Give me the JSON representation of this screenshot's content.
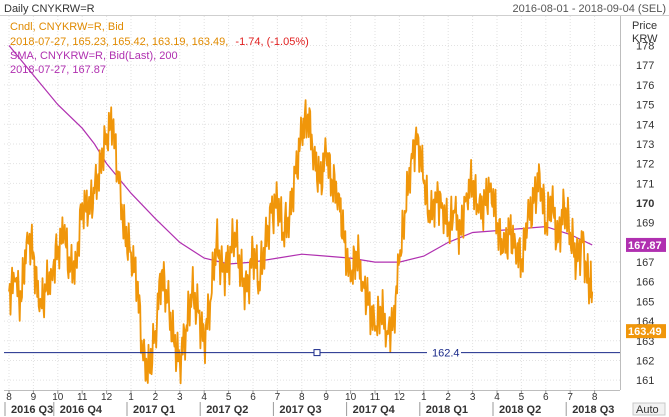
{
  "header": {
    "title": "Daily CNYKRW=R",
    "date_range": "2016-08-01 - 2018-09-04 (SEL)"
  },
  "legend": {
    "candle_label": "Cndl, CNYKRW=R, Bid",
    "candle_values": "2018-07-27, 165.23, 165.42, 163.19, 163.49,",
    "candle_change": "-1.74, (-1.05%)",
    "sma_label": "SMA, CNYKRW=R, Bid(Last), 200",
    "sma_values": "2018-07-27, 167.87"
  },
  "axis": {
    "price_label": "Price",
    "unit_label": "KRW",
    "auto_button": "Auto"
  },
  "colors": {
    "price": "#f0960a",
    "sma": "#b030b0",
    "hline": "#1a2a8a",
    "change_negative": "#e02020",
    "last_price_badge": "#f0960a",
    "sma_badge": "#b030b0",
    "grid": "#e2e2e2"
  },
  "chart_data": {
    "type": "line",
    "title": "Daily CNYKRW=R",
    "ylabel": "Price KRW",
    "ylim": [
      160.5,
      179.5
    ],
    "y_ticks": [
      161,
      162,
      163,
      164,
      165,
      166,
      167,
      168,
      169,
      170,
      171,
      172,
      173,
      174,
      175,
      176,
      177,
      178
    ],
    "x_month_ticks": [
      "8",
      "9",
      "10",
      "11",
      "12",
      "1",
      "2",
      "3",
      "4",
      "5",
      "6",
      "7",
      "8",
      "9",
      "10",
      "11",
      "12",
      "1",
      "2",
      "3",
      "4",
      "5",
      "6",
      "7",
      "8"
    ],
    "x_quarter_labels": [
      "2016 Q3",
      "2016 Q4",
      "2017 Q1",
      "2017 Q2",
      "2017 Q3",
      "2017 Q4",
      "2018 Q1",
      "2018 Q2",
      "2018 Q3"
    ],
    "series": [
      {
        "name": "CNYKRW=R, Bid",
        "x_month_index": [
          0,
          0.25,
          0.5,
          0.75,
          1,
          1.25,
          1.5,
          1.75,
          2,
          2.25,
          2.5,
          2.75,
          3,
          3.25,
          3.5,
          3.75,
          4,
          4.25,
          4.5,
          4.75,
          5,
          5.25,
          5.5,
          5.75,
          6,
          6.25,
          6.5,
          6.75,
          7,
          7.25,
          7.5,
          7.75,
          8,
          8.25,
          8.5,
          8.75,
          9,
          9.25,
          9.5,
          9.75,
          10,
          10.25,
          10.5,
          10.75,
          11,
          11.25,
          11.5,
          11.75,
          12,
          12.25,
          12.5,
          12.75,
          13,
          13.25,
          13.5,
          13.75,
          14,
          14.25,
          14.5,
          14.75,
          15,
          15.25,
          15.5,
          15.75,
          16,
          16.25,
          16.5,
          16.75,
          17,
          17.25,
          17.5,
          17.75,
          18,
          18.25,
          18.5,
          18.75,
          19,
          19.25,
          19.5,
          19.75,
          20,
          20.25,
          20.5,
          20.75,
          21,
          21.25,
          21.5,
          21.75,
          22,
          22.25,
          22.5,
          22.75,
          23,
          23.25,
          23.5,
          23.75,
          23.9
        ],
        "values": [
          165.5,
          166.0,
          165.0,
          168.5,
          167.5,
          164.5,
          165.5,
          166.5,
          167.8,
          168.5,
          166.5,
          167.0,
          170.0,
          169.5,
          170.5,
          172.0,
          173.5,
          174.0,
          171.0,
          168.5,
          167.5,
          166.0,
          162.0,
          161.5,
          163.5,
          166.5,
          165.0,
          163.0,
          162.0,
          163.5,
          165.5,
          164.5,
          163.0,
          165.0,
          168.0,
          166.5,
          167.0,
          168.5,
          166.5,
          165.5,
          167.5,
          166.0,
          168.0,
          169.5,
          170.0,
          168.5,
          169.5,
          171.5,
          173.5,
          174.5,
          172.5,
          171.0,
          172.5,
          171.0,
          170.5,
          168.0,
          166.0,
          167.5,
          166.0,
          165.0,
          163.5,
          164.5,
          163.5,
          164.0,
          167.0,
          169.5,
          172.5,
          173.5,
          171.0,
          169.0,
          170.5,
          170.0,
          168.5,
          169.5,
          168.5,
          170.5,
          171.0,
          169.5,
          170.0,
          171.0,
          169.0,
          167.5,
          168.5,
          168.0,
          167.0,
          169.0,
          170.0,
          171.5,
          169.0,
          170.0,
          168.0,
          170.0,
          168.5,
          167.0,
          168.0,
          166.0,
          165.5,
          163.49
        ]
      },
      {
        "name": "SMA, CNYKRW=R, Bid(Last), 200",
        "x_month_index": [
          0,
          1,
          2,
          3,
          3.5,
          4,
          5,
          6,
          7,
          8,
          9,
          10,
          11,
          12,
          13,
          14,
          15,
          16,
          17,
          18,
          19,
          20,
          21,
          22,
          23,
          23.9
        ],
        "values": [
          178.0,
          176.5,
          175.0,
          173.8,
          173.0,
          172.0,
          170.5,
          169.2,
          168.0,
          167.2,
          166.9,
          167.0,
          167.2,
          167.4,
          167.3,
          167.2,
          167.0,
          167.0,
          167.3,
          168.0,
          168.5,
          168.6,
          168.7,
          168.8,
          168.4,
          167.87
        ]
      }
    ],
    "horizontal_line": 162.4,
    "horizontal_line_label": "162.4",
    "last_price": "163.49",
    "sma_last": "167.87",
    "highlighted_tick": "170"
  }
}
